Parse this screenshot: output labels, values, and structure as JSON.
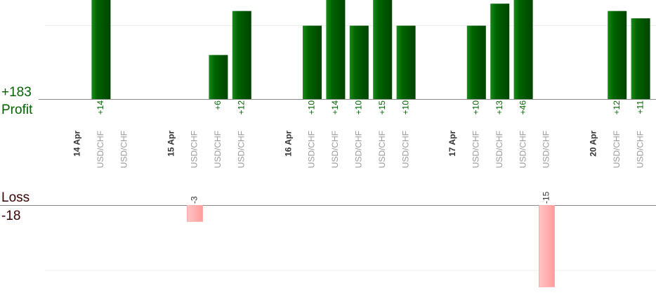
{
  "chart_data": {
    "type": "bar",
    "profit_total": "+183",
    "profit_title": "Profit",
    "loss_title": "Loss",
    "loss_total": "-18",
    "profit_color": "#006400",
    "loss_color": "#ffaaaa",
    "profit_ylim": [
      0,
      13.5
    ],
    "loss_ylim": [
      -16.5,
      0
    ],
    "profit_grid": [
      10
    ],
    "loss_grid": [
      -12
    ],
    "days": [
      {
        "date": "14 Apr",
        "trades": [
          {
            "pair": "USD/CHF",
            "value": 14,
            "value_label": "+14"
          },
          {
            "pair": "USD/CHF",
            "value": null,
            "value_label": null
          }
        ]
      },
      {
        "date": "15 Apr",
        "trades": [
          {
            "pair": "USD/CHF",
            "value": -3,
            "value_label": "-3"
          },
          {
            "pair": "USD/CHF",
            "value": 6,
            "value_label": "+6"
          },
          {
            "pair": "USD/CHF",
            "value": 12,
            "value_label": "+12"
          }
        ]
      },
      {
        "date": "16 Apr",
        "trades": [
          {
            "pair": "USD/CHF",
            "value": 10,
            "value_label": "+10"
          },
          {
            "pair": "USD/CHF",
            "value": 14,
            "value_label": "+14"
          },
          {
            "pair": "USD/CHF",
            "value": 10,
            "value_label": "+10"
          },
          {
            "pair": "USD/CHF",
            "value": 15,
            "value_label": "+15"
          },
          {
            "pair": "USD/CHF",
            "value": 10,
            "value_label": "+10"
          }
        ]
      },
      {
        "date": "17 Apr",
        "trades": [
          {
            "pair": "USD/CHF",
            "value": 10,
            "value_label": "+10"
          },
          {
            "pair": "USD/CHF",
            "value": 13,
            "value_label": "+13"
          },
          {
            "pair": "USD/CHF",
            "value": 46,
            "value_label": "+46"
          },
          {
            "pair": "USD/CHF",
            "value": -15,
            "value_label": "-15"
          }
        ]
      },
      {
        "date": "20 Apr",
        "trades": [
          {
            "pair": "USD/CHF",
            "value": 12,
            "value_label": "+12"
          },
          {
            "pair": "USD/CHF",
            "value": 11,
            "value_label": "+11"
          }
        ]
      }
    ]
  }
}
